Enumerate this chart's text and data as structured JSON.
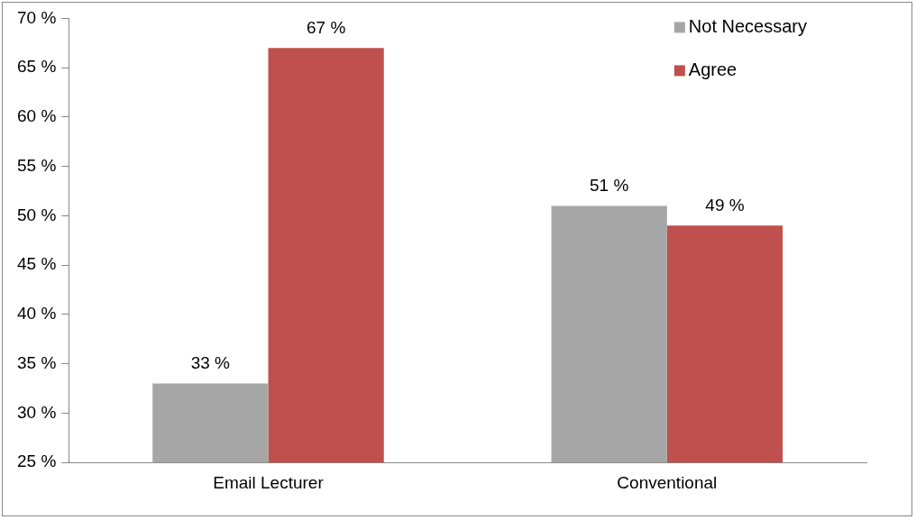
{
  "chart_data": {
    "type": "bar",
    "categories": [
      "Email Lecturer",
      "Conventional"
    ],
    "series": [
      {
        "name": "Not Necessary",
        "color": "#a6a6a6",
        "values": [
          33,
          51
        ],
        "value_labels": [
          "33 %",
          "51 %"
        ]
      },
      {
        "name": "Agree",
        "color": "#c0504d",
        "values": [
          67,
          49
        ],
        "value_labels": [
          "67 %",
          "49 %"
        ]
      }
    ],
    "ylim": [
      25,
      70
    ],
    "yticks": [
      {
        "value": 25,
        "label": "25 %"
      },
      {
        "value": 30,
        "label": "30 %"
      },
      {
        "value": 35,
        "label": "35 %"
      },
      {
        "value": 40,
        "label": "40 %"
      },
      {
        "value": 45,
        "label": "45 %"
      },
      {
        "value": 50,
        "label": "50 %"
      },
      {
        "value": 55,
        "label": "55 %"
      },
      {
        "value": 60,
        "label": "60 %"
      },
      {
        "value": 65,
        "label": "65 %"
      },
      {
        "value": 70,
        "label": "70 %"
      }
    ],
    "grid": false,
    "legend": "top right"
  }
}
